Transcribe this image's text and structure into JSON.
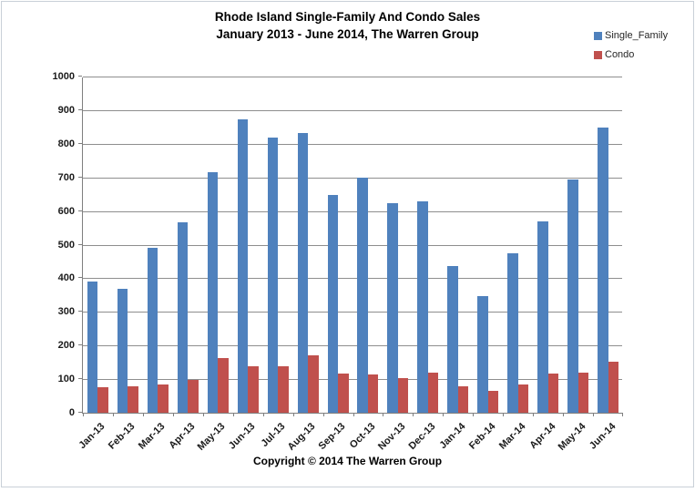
{
  "title": {
    "line1": "Rhode Island Single-Family And Condo Sales",
    "line2": "January 2013 - June 2014, The Warren Group"
  },
  "footer": {
    "copyright": "Copyright © 2014 The Warren Group"
  },
  "colors": {
    "single_family": "#4F81BD",
    "condo": "#C0504D",
    "gridline": "#8e8e8e",
    "axis": "#7f7f7f"
  },
  "chart_data": {
    "type": "bar",
    "title": "Rhode Island Single-Family And Condo Sales",
    "subtitle": "January 2013 - June 2014, The Warren Group",
    "categories": [
      "Jan-13",
      "Feb-13",
      "Mar-13",
      "Apr-13",
      "May-13",
      "Jun-13",
      "Jul-13",
      "Aug-13",
      "Sep-13",
      "Oct-13",
      "Nov-13",
      "Dec-13",
      "Jan-14",
      "Feb-14",
      "Mar-14",
      "Apr-14",
      "May-14",
      "Jun-14"
    ],
    "series": [
      {
        "name": "Single_Family",
        "color": "#4F81BD",
        "values": [
          390,
          369,
          490,
          567,
          715,
          872,
          818,
          833,
          648,
          700,
          622,
          630,
          437,
          347,
          473,
          568,
          693,
          847
        ]
      },
      {
        "name": "Condo",
        "color": "#C0504D",
        "values": [
          75,
          78,
          83,
          97,
          163,
          137,
          137,
          172,
          117,
          114,
          104,
          118,
          79,
          66,
          83,
          117,
          120,
          153
        ]
      }
    ],
    "xlabel": "",
    "ylabel": "",
    "ylim": [
      0,
      1000
    ],
    "ytick_step": 100,
    "grid": true,
    "legend_position": "top-right"
  }
}
